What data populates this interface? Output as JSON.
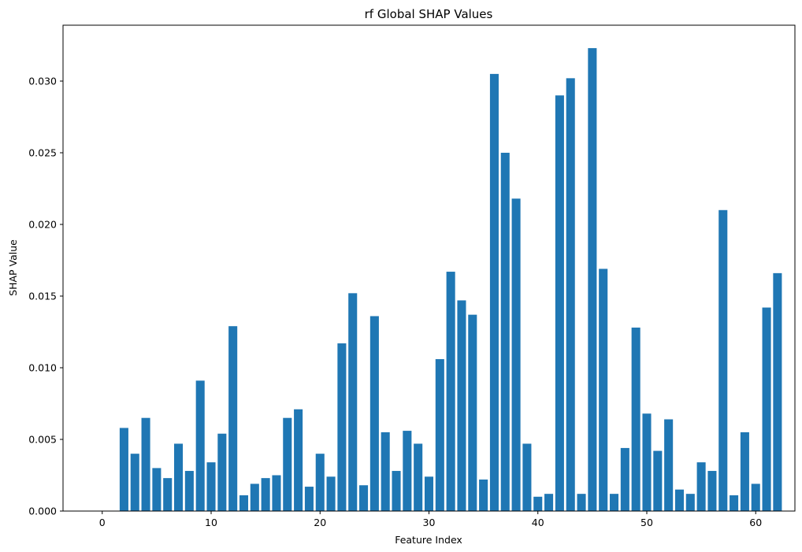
{
  "chart_data": {
    "type": "bar",
    "title": "rf Global SHAP Values",
    "xlabel": "Feature Index",
    "ylabel": "SHAP Value",
    "xlim": [
      -3.6,
      63.6
    ],
    "ylim": [
      0,
      0.0339
    ],
    "xticks": [
      0,
      10,
      20,
      30,
      40,
      50,
      60
    ],
    "yticks": [
      "0.000",
      "0.005",
      "0.010",
      "0.015",
      "0.020",
      "0.025",
      "0.030"
    ],
    "grid": false,
    "color": "#1f77b4",
    "x": [
      0,
      1,
      2,
      3,
      4,
      5,
      6,
      7,
      8,
      9,
      10,
      11,
      12,
      13,
      14,
      15,
      16,
      17,
      18,
      19,
      20,
      21,
      22,
      23,
      24,
      25,
      26,
      27,
      28,
      29,
      30,
      31,
      32,
      33,
      34,
      35,
      36,
      37,
      38,
      39,
      40,
      41,
      42,
      43,
      44,
      45,
      46,
      47,
      48,
      49,
      50,
      51,
      52,
      53,
      54,
      55,
      56,
      57,
      58,
      59,
      60,
      61,
      62
    ],
    "values": [
      0,
      0,
      0.0058,
      0.004,
      0.0065,
      0.003,
      0.0023,
      0.0047,
      0.0028,
      0.0091,
      0.0034,
      0.0054,
      0.0129,
      0.0011,
      0.0019,
      0.0023,
      0.0025,
      0.0065,
      0.0071,
      0.0017,
      0.004,
      0.0024,
      0.0117,
      0.0152,
      0.0018,
      0.0136,
      0.0055,
      0.0028,
      0.0056,
      0.0047,
      0.0024,
      0.0106,
      0.0167,
      0.0147,
      0.0137,
      0.0022,
      0.0305,
      0.025,
      0.0218,
      0.0047,
      0.001,
      0.0012,
      0.029,
      0.0302,
      0.0012,
      0.0323,
      0.0169,
      0.0012,
      0.0044,
      0.0128,
      0.0068,
      0.0042,
      0.0064,
      0.0015,
      0.0012,
      0.0034,
      0.0028,
      0.021,
      0.0011,
      0.0055,
      0.0019,
      0.0142,
      0.0166
    ]
  }
}
